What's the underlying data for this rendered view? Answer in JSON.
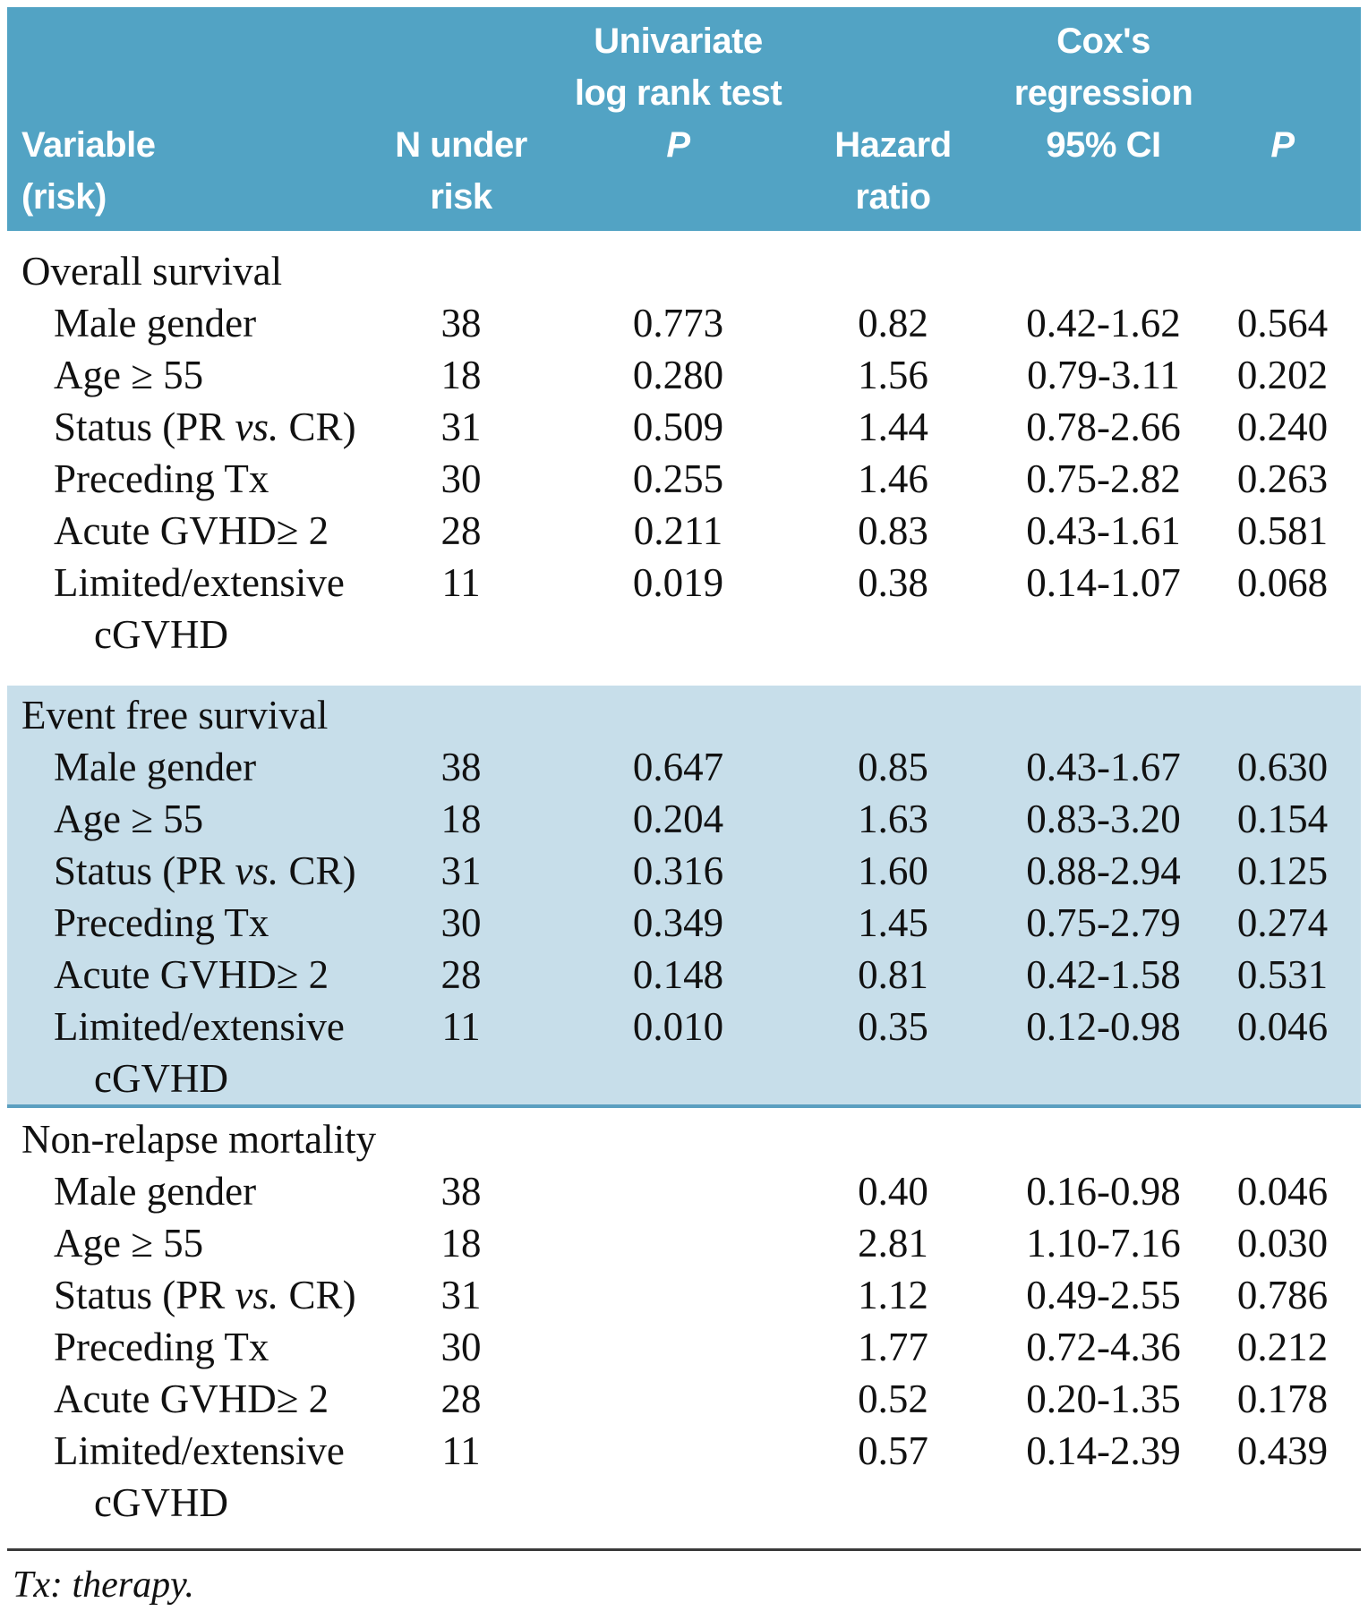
{
  "header": {
    "columns": [
      {
        "id": "variable",
        "lines": [
          "",
          "",
          "Variable",
          "(risk)"
        ]
      },
      {
        "id": "n-under-risk",
        "lines": [
          "",
          "",
          "N under",
          "risk"
        ]
      },
      {
        "id": "univariate-p",
        "lines": [
          "Univariate",
          "log rank test",
          "P",
          ""
        ]
      },
      {
        "id": "hazard-ratio",
        "lines": [
          "",
          "",
          "Hazard",
          "ratio"
        ]
      },
      {
        "id": "ci-95",
        "lines": [
          "Cox's",
          "regression",
          "95% CI",
          ""
        ]
      },
      {
        "id": "p",
        "lines": [
          "",
          "",
          "P",
          ""
        ]
      }
    ]
  },
  "sections": [
    {
      "title": "Overall survival",
      "shaded": false,
      "rows": [
        {
          "variable": "Male gender",
          "variable_line2": "",
          "n": "38",
          "univariate_p": "0.773",
          "hazard_ratio": "0.82",
          "ci_95": "0.42-1.62",
          "p": "0.564"
        },
        {
          "variable": "Age ≥ 55",
          "variable_line2": "",
          "n": "18",
          "univariate_p": "0.280",
          "hazard_ratio": "1.56",
          "ci_95": "0.79-3.11",
          "p": "0.202"
        },
        {
          "variable": "Status (PR vs. CR)",
          "variable_line2": "",
          "n": "31",
          "univariate_p": "0.509",
          "hazard_ratio": "1.44",
          "ci_95": "0.78-2.66",
          "p": "0.240"
        },
        {
          "variable": "Preceding Tx",
          "variable_line2": "",
          "n": "30",
          "univariate_p": "0.255",
          "hazard_ratio": "1.46",
          "ci_95": "0.75-2.82",
          "p": "0.263"
        },
        {
          "variable": "Acute GVHD≥ 2",
          "variable_line2": "",
          "n": "28",
          "univariate_p": "0.211",
          "hazard_ratio": "0.83",
          "ci_95": "0.43-1.61",
          "p": "0.581"
        },
        {
          "variable": "Limited/extensive",
          "variable_line2": "cGVHD",
          "n": "11",
          "univariate_p": "0.019",
          "hazard_ratio": "0.38",
          "ci_95": "0.14-1.07",
          "p": "0.068"
        }
      ]
    },
    {
      "title": "Event free survival",
      "shaded": true,
      "rows": [
        {
          "variable": "Male gender",
          "variable_line2": "",
          "n": "38",
          "univariate_p": "0.647",
          "hazard_ratio": "0.85",
          "ci_95": "0.43-1.67",
          "p": "0.630"
        },
        {
          "variable": "Age ≥ 55",
          "variable_line2": "",
          "n": "18",
          "univariate_p": "0.204",
          "hazard_ratio": "1.63",
          "ci_95": "0.83-3.20",
          "p": "0.154"
        },
        {
          "variable": "Status (PR vs. CR)",
          "variable_line2": "",
          "n": "31",
          "univariate_p": "0.316",
          "hazard_ratio": "1.60",
          "ci_95": "0.88-2.94",
          "p": "0.125"
        },
        {
          "variable": "Preceding Tx",
          "variable_line2": "",
          "n": "30",
          "univariate_p": "0.349",
          "hazard_ratio": "1.45",
          "ci_95": "0.75-2.79",
          "p": "0.274"
        },
        {
          "variable": "Acute GVHD≥ 2",
          "variable_line2": "",
          "n": "28",
          "univariate_p": "0.148",
          "hazard_ratio": "0.81",
          "ci_95": "0.42-1.58",
          "p": "0.531"
        },
        {
          "variable": "Limited/extensive",
          "variable_line2": "cGVHD",
          "n": "11",
          "univariate_p": "0.010",
          "hazard_ratio": "0.35",
          "ci_95": "0.12-0.98",
          "p": "0.046"
        }
      ]
    },
    {
      "title": "Non-relapse mortality",
      "shaded": false,
      "rows": [
        {
          "variable": "Male gender",
          "variable_line2": "",
          "n": "38",
          "univariate_p": "",
          "hazard_ratio": "0.40",
          "ci_95": "0.16-0.98",
          "p": "0.046"
        },
        {
          "variable": "Age ≥ 55",
          "variable_line2": "",
          "n": "18",
          "univariate_p": "",
          "hazard_ratio": "2.81",
          "ci_95": "1.10-7.16",
          "p": "0.030"
        },
        {
          "variable": "Status (PR vs. CR)",
          "variable_line2": "",
          "n": "31",
          "univariate_p": "",
          "hazard_ratio": "1.12",
          "ci_95": "0.49-2.55",
          "p": "0.786"
        },
        {
          "variable": "Preceding Tx",
          "variable_line2": "",
          "n": "30",
          "univariate_p": "",
          "hazard_ratio": "1.77",
          "ci_95": "0.72-4.36",
          "p": "0.212"
        },
        {
          "variable": "Acute GVHD≥ 2",
          "variable_line2": "",
          "n": "28",
          "univariate_p": "",
          "hazard_ratio": "0.52",
          "ci_95": "0.20-1.35",
          "p": "0.178"
        },
        {
          "variable": "Limited/extensive",
          "variable_line2": "cGVHD",
          "n": "11",
          "univariate_p": "",
          "hazard_ratio": "0.57",
          "ci_95": "0.14-2.39",
          "p": "0.439"
        }
      ]
    }
  ],
  "footnote": "Tx: therapy.",
  "colors": {
    "header_bg": "#52a3c4",
    "shaded_bg": "#c7deea",
    "divider": "#5b9fc0",
    "rule": "#3a3a3a",
    "header_text": "#ffffff",
    "text": "#111111"
  }
}
